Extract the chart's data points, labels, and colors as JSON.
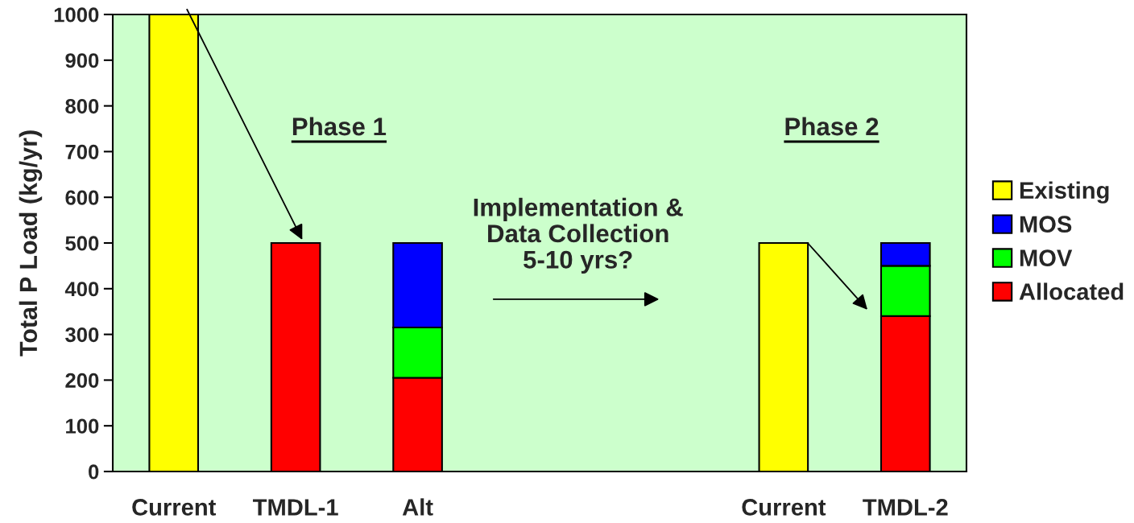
{
  "chart_data": {
    "type": "bar",
    "stacked": true,
    "ylabel": "Total P Load (kg/yr)",
    "categories": [
      "Current",
      "TMDL-1",
      "Alt",
      null,
      null,
      "Current",
      "TMDL-2"
    ],
    "series": [
      {
        "name": "Allocated",
        "color": "#ff0000",
        "values": [
          null,
          500,
          205,
          null,
          null,
          null,
          340
        ]
      },
      {
        "name": "MOV",
        "color": "#00ff00",
        "values": [
          null,
          null,
          110,
          null,
          null,
          null,
          110
        ]
      },
      {
        "name": "MOS",
        "color": "#0000ff",
        "values": [
          null,
          null,
          185,
          null,
          null,
          null,
          50
        ]
      },
      {
        "name": "Existing",
        "color": "#ffff00",
        "values": [
          1000,
          null,
          null,
          null,
          null,
          500,
          null
        ]
      }
    ],
    "ylim": [
      0,
      1000
    ],
    "yticks": [
      0,
      100,
      200,
      300,
      400,
      500,
      600,
      700,
      800,
      900,
      1000
    ],
    "annotations": [
      "Phase 1",
      "Phase 2",
      "Implementation &\nData Collection\n5-10 yrs?"
    ],
    "legend": "right",
    "grid": false
  }
}
